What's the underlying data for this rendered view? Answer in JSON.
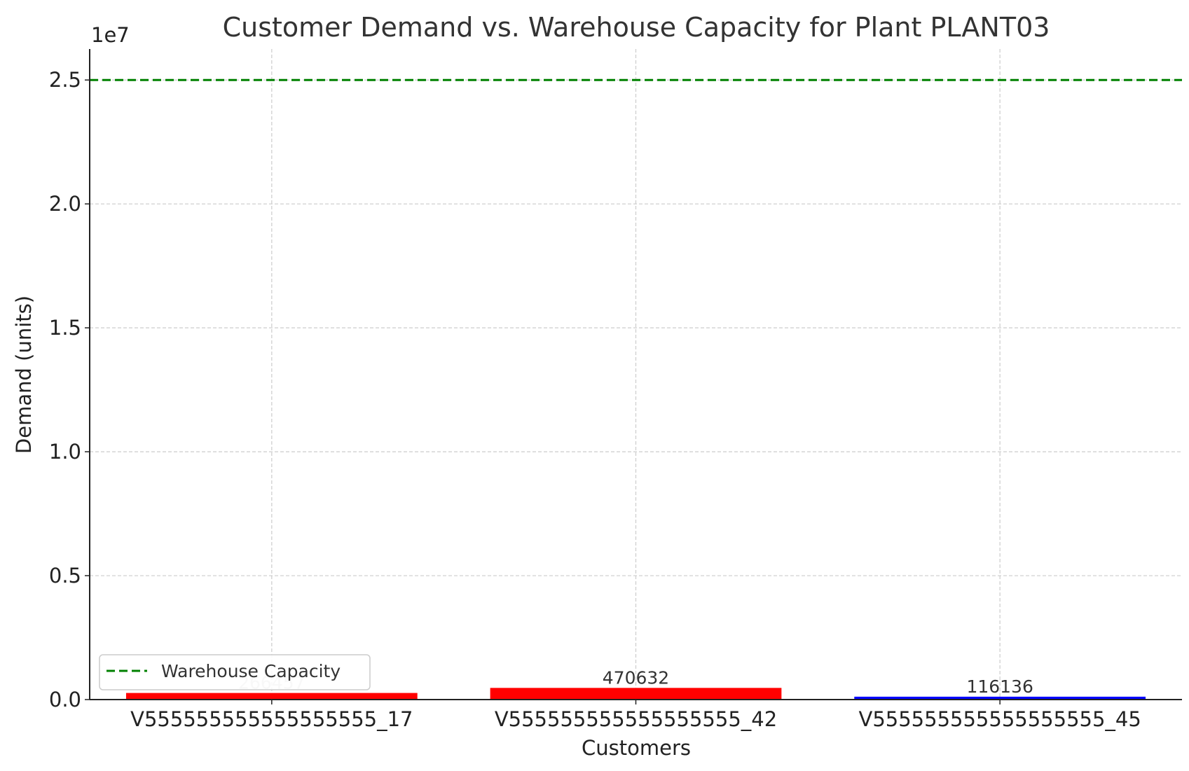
{
  "chart_data": {
    "type": "bar",
    "title": "Customer Demand vs. Warehouse Capacity for Plant PLANT03",
    "xlabel": "Customers",
    "ylabel": "Demand (units)",
    "y_offset_label": "1e7",
    "categories": [
      "V555555555555555555_17",
      "V555555555555555555_42",
      "V555555555555555555_45"
    ],
    "values": [
      266457,
      470632,
      116136
    ],
    "data_labels": [
      "266457",
      "470632",
      "116136"
    ],
    "bar_colors": [
      "#ff0000",
      "#ff0000",
      "#0000ff"
    ],
    "data_label_colors": [
      "#cccccc",
      "#333333",
      "#333333"
    ],
    "ylim": [
      0,
      26250000
    ],
    "yticks": [
      0,
      5000000,
      10000000,
      15000000,
      20000000,
      25000000
    ],
    "ytick_labels": [
      "0.0",
      "0.5",
      "1.0",
      "1.5",
      "2.0",
      "2.5"
    ],
    "grid": true,
    "reference_line": {
      "name": "Warehouse Capacity",
      "value": 25000000,
      "style": "dashed",
      "color": "#008000"
    },
    "legend": {
      "position": "lower-left",
      "entries": [
        "Warehouse Capacity"
      ]
    }
  }
}
